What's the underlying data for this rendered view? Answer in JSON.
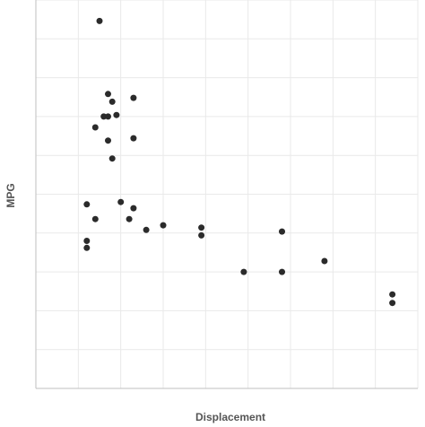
{
  "chart_data": {
    "type": "scatter",
    "title": "",
    "xlabel": "Displacement",
    "ylabel": "MPG",
    "xlim": [
      0,
      9.0
    ],
    "ylim": [
      0,
      50
    ],
    "grid": true,
    "tick_labels_visible": false,
    "axis_line": true,
    "point_color": "#2b2b2b",
    "grid_color": "#e9e9e9",
    "axis_color": "#bfbfbf",
    "label_color": "#555555",
    "series": [
      {
        "points": [
          {
            "x": 1.5,
            "y": 47.3
          },
          {
            "x": 1.7,
            "y": 37.9
          },
          {
            "x": 2.3,
            "y": 37.4
          },
          {
            "x": 1.8,
            "y": 36.9
          },
          {
            "x": 1.6,
            "y": 35.0
          },
          {
            "x": 1.7,
            "y": 35.0
          },
          {
            "x": 1.9,
            "y": 35.2
          },
          {
            "x": 1.4,
            "y": 33.6
          },
          {
            "x": 2.3,
            "y": 32.2
          },
          {
            "x": 1.7,
            "y": 31.9
          },
          {
            "x": 1.8,
            "y": 29.6
          },
          {
            "x": 1.2,
            "y": 23.7
          },
          {
            "x": 2.0,
            "y": 24.0
          },
          {
            "x": 2.3,
            "y": 23.2
          },
          {
            "x": 1.4,
            "y": 21.8
          },
          {
            "x": 2.2,
            "y": 21.8
          },
          {
            "x": 2.6,
            "y": 20.4
          },
          {
            "x": 3.0,
            "y": 21.0
          },
          {
            "x": 3.9,
            "y": 20.7
          },
          {
            "x": 3.9,
            "y": 19.7
          },
          {
            "x": 5.8,
            "y": 20.2
          },
          {
            "x": 1.2,
            "y": 19.0
          },
          {
            "x": 1.2,
            "y": 18.1
          },
          {
            "x": 4.9,
            "y": 15.0
          },
          {
            "x": 5.8,
            "y": 15.0
          },
          {
            "x": 6.8,
            "y": 16.4
          },
          {
            "x": 8.4,
            "y": 12.1
          },
          {
            "x": 8.4,
            "y": 11.0
          }
        ]
      }
    ]
  }
}
